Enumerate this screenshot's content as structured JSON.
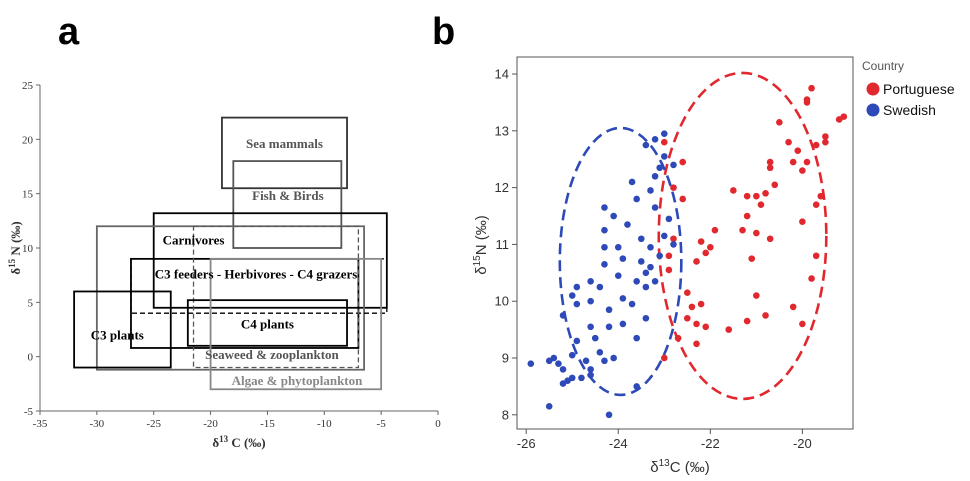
{
  "panels": {
    "a": {
      "letter": "a",
      "xlabel_base": "δ",
      "xlabel_sup": "13",
      "xlabel_rest": " C (‰)",
      "ylabel_base": "δ",
      "ylabel_sup": "15",
      "ylabel_rest": " N (‰)"
    },
    "b": {
      "letter": "b",
      "xlabel_base": "δ",
      "xlabel_sup": "13",
      "xlabel_rest": "C (‰)",
      "ylabel_base": "δ",
      "ylabel_sup": "15",
      "ylabel_rest": "N (‰)",
      "legend_title": "Country"
    }
  },
  "chart_data": [
    {
      "type": "table",
      "panel": "a",
      "xlim": [
        -35,
        0
      ],
      "ylim": [
        -5,
        25
      ],
      "xticks": [
        -35,
        -30,
        -25,
        -20,
        -15,
        -10,
        -5,
        0
      ],
      "yticks": [
        -5,
        0,
        5,
        10,
        15,
        20,
        25
      ],
      "grid": false,
      "regions": [
        {
          "label": "Sea mammals",
          "x": [
            -19,
            -8
          ],
          "y": [
            15.5,
            22
          ],
          "color": "#333333",
          "label_color": "#555555",
          "style": "solid"
        },
        {
          "label": "Fish & Birds",
          "x": [
            -18,
            -8.5
          ],
          "y": [
            10,
            18
          ],
          "color": "#555555",
          "label_color": "#555555",
          "style": "solid"
        },
        {
          "label": "Carnivores",
          "x": [
            -25,
            -4.5
          ],
          "y": [
            4.5,
            13.2
          ],
          "color": "#000000",
          "label_color": "#000000",
          "style": "solid"
        },
        {
          "label": "",
          "x": [
            -30,
            -6.5
          ],
          "y": [
            -1.2,
            12
          ],
          "color": "#666666",
          "label_color": "#666666",
          "style": "solid"
        },
        {
          "label": "C3 feeders - Herbivores - C4 grazers",
          "x": [
            -27,
            -7
          ],
          "y": [
            0.8,
            9
          ],
          "color": "#000000",
          "label_color": "#000000",
          "style": "solid"
        },
        {
          "label": "",
          "x": [
            -27,
            -4.5
          ],
          "y": [
            4,
            9
          ],
          "color": "#000000",
          "label_color": "#000000",
          "style": "dashed"
        },
        {
          "label": "Seaweed & zooplankton",
          "x": [
            -21.5,
            -7
          ],
          "y": [
            -1,
            12
          ],
          "color": "#555555",
          "label_color": "#555555",
          "style": "dashed"
        },
        {
          "label": "C3 plants",
          "x": [
            -32,
            -23.5
          ],
          "y": [
            -1,
            6
          ],
          "color": "#000000",
          "label_color": "#000000",
          "style": "solid"
        },
        {
          "label": "C4 plants",
          "x": [
            -22,
            -8
          ],
          "y": [
            1,
            5.2
          ],
          "color": "#000000",
          "label_color": "#000000",
          "style": "solid"
        },
        {
          "label": "Algae & phytoplankton",
          "x": [
            -20,
            -5
          ],
          "y": [
            -3,
            9
          ],
          "color": "#888888",
          "label_color": "#888888",
          "style": "solid"
        }
      ]
    },
    {
      "type": "scatter",
      "panel": "b",
      "xlim": [
        -26.2,
        -18.9
      ],
      "ylim": [
        7.75,
        14.3
      ],
      "xticks": [
        -26,
        -24,
        -22,
        -20
      ],
      "yticks": [
        8,
        9,
        10,
        11,
        12,
        13,
        14
      ],
      "grid": false,
      "legend": "right",
      "series": [
        {
          "name": "Portuguese",
          "color": "#e0282e",
          "ellipse": {
            "cx": -21.3,
            "cy": 11.15,
            "rx": 1.82,
            "ry": 2.87
          },
          "points": [
            [
              -19.1,
              13.25
            ],
            [
              -19.2,
              13.2
            ],
            [
              -19.5,
              12.9
            ],
            [
              -19.5,
              12.8
            ],
            [
              -19.8,
              13.75
            ],
            [
              -19.9,
              13.55
            ],
            [
              -19.9,
              13.5
            ],
            [
              -19.7,
              12.75
            ],
            [
              -19.9,
              12.45
            ],
            [
              -20.1,
              12.65
            ],
            [
              -20.0,
              12.3
            ],
            [
              -20.3,
              12.8
            ],
            [
              -20.2,
              12.45
            ],
            [
              -19.6,
              11.85
            ],
            [
              -19.7,
              11.7
            ],
            [
              -20.0,
              11.4
            ],
            [
              -20.5,
              13.15
            ],
            [
              -20.7,
              12.45
            ],
            [
              -20.7,
              12.35
            ],
            [
              -20.6,
              12.05
            ],
            [
              -20.8,
              11.9
            ],
            [
              -21.0,
              11.85
            ],
            [
              -20.9,
              11.7
            ],
            [
              -21.2,
              11.85
            ],
            [
              -21.5,
              11.95
            ],
            [
              -21.2,
              11.5
            ],
            [
              -21.3,
              11.25
            ],
            [
              -21.0,
              11.2
            ],
            [
              -20.7,
              11.1
            ],
            [
              -21.1,
              10.75
            ],
            [
              -19.7,
              10.8
            ],
            [
              -19.8,
              10.4
            ],
            [
              -20.2,
              9.9
            ],
            [
              -20.0,
              9.6
            ],
            [
              -21.0,
              10.1
            ],
            [
              -20.8,
              9.75
            ],
            [
              -21.2,
              9.65
            ],
            [
              -21.6,
              9.5
            ],
            [
              -21.9,
              11.25
            ],
            [
              -22.0,
              10.95
            ],
            [
              -22.2,
              11.05
            ],
            [
              -22.1,
              10.85
            ],
            [
              -22.3,
              10.7
            ],
            [
              -22.2,
              9.95
            ],
            [
              -22.3,
              9.6
            ],
            [
              -22.1,
              9.55
            ],
            [
              -22.3,
              9.25
            ],
            [
              -22.5,
              9.7
            ],
            [
              -22.5,
              10.15
            ],
            [
              -22.7,
              9.35
            ],
            [
              -22.9,
              10.8
            ],
            [
              -22.9,
              10.55
            ],
            [
              -22.8,
              11.1
            ],
            [
              -22.6,
              11.8
            ],
            [
              -22.8,
              12.0
            ],
            [
              -22.6,
              12.45
            ],
            [
              -23.0,
              12.8
            ],
            [
              -23.0,
              9.0
            ],
            [
              -22.4,
              9.9
            ]
          ]
        },
        {
          "name": "Swedish",
          "color": "#2e4ab8",
          "ellipse": {
            "cx": -23.95,
            "cy": 10.7,
            "rx": 1.32,
            "ry": 2.35
          },
          "points": [
            [
              -23.0,
              12.95
            ],
            [
              -23.2,
              12.85
            ],
            [
              -23.4,
              12.75
            ],
            [
              -23.0,
              12.55
            ],
            [
              -23.1,
              12.35
            ],
            [
              -23.2,
              12.2
            ],
            [
              -22.8,
              12.4
            ],
            [
              -23.7,
              12.1
            ],
            [
              -23.3,
              11.95
            ],
            [
              -23.6,
              11.8
            ],
            [
              -23.2,
              11.65
            ],
            [
              -22.9,
              11.45
            ],
            [
              -24.3,
              11.65
            ],
            [
              -24.1,
              11.5
            ],
            [
              -24.3,
              11.25
            ],
            [
              -23.8,
              11.35
            ],
            [
              -23.5,
              11.1
            ],
            [
              -23.3,
              10.95
            ],
            [
              -24.0,
              10.95
            ],
            [
              -24.3,
              10.95
            ],
            [
              -23.9,
              10.75
            ],
            [
              -24.3,
              10.65
            ],
            [
              -23.5,
              10.7
            ],
            [
              -23.3,
              10.6
            ],
            [
              -23.4,
              10.5
            ],
            [
              -24.0,
              10.45
            ],
            [
              -23.6,
              10.35
            ],
            [
              -23.2,
              10.35
            ],
            [
              -23.4,
              10.25
            ],
            [
              -24.6,
              10.35
            ],
            [
              -24.4,
              10.25
            ],
            [
              -24.6,
              10.0
            ],
            [
              -24.2,
              9.85
            ],
            [
              -23.9,
              10.05
            ],
            [
              -23.7,
              9.95
            ],
            [
              -23.4,
              9.7
            ],
            [
              -24.9,
              10.25
            ],
            [
              -25.0,
              10.1
            ],
            [
              -24.9,
              9.95
            ],
            [
              -25.2,
              9.75
            ],
            [
              -24.6,
              9.55
            ],
            [
              -24.2,
              9.55
            ],
            [
              -23.9,
              9.6
            ],
            [
              -23.6,
              9.35
            ],
            [
              -24.5,
              9.35
            ],
            [
              -24.9,
              9.3
            ],
            [
              -25.0,
              9.05
            ],
            [
              -24.7,
              8.95
            ],
            [
              -24.3,
              8.95
            ],
            [
              -24.1,
              9.0
            ],
            [
              -25.0,
              8.65
            ],
            [
              -25.2,
              8.8
            ],
            [
              -25.3,
              8.9
            ],
            [
              -25.5,
              8.95
            ],
            [
              -25.4,
              9.0
            ],
            [
              -25.9,
              8.9
            ],
            [
              -24.6,
              8.7
            ],
            [
              -24.8,
              8.65
            ],
            [
              -23.6,
              8.5
            ],
            [
              -25.2,
              8.55
            ],
            [
              -25.1,
              8.6
            ],
            [
              -25.5,
              8.15
            ],
            [
              -24.2,
              8.0
            ],
            [
              -23.0,
              11.15
            ],
            [
              -22.8,
              11.0
            ],
            [
              -23.1,
              10.8
            ],
            [
              -24.6,
              8.8
            ],
            [
              -24.4,
              9.1
            ]
          ]
        }
      ]
    }
  ]
}
